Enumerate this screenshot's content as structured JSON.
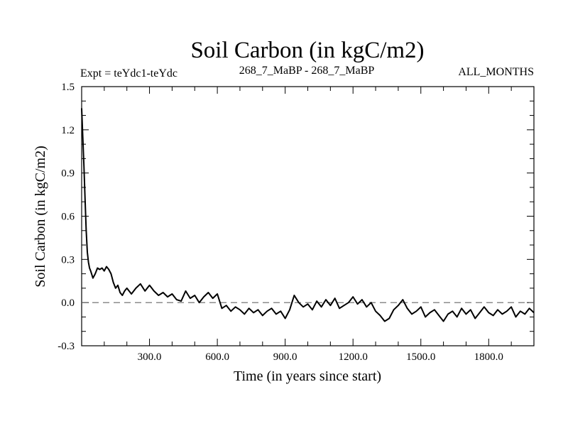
{
  "chart_data": {
    "type": "line",
    "title": "Soil Carbon (in kgC/m2)",
    "subtitle_left": "Expt = teYdc1-teYdc",
    "subtitle_center": "268_7_MaBP - 268_7_MaBP",
    "subtitle_right": "ALL_MONTHS",
    "xlabel": "Time (in years since start)",
    "ylabel": "Soil Carbon (in kgC/m2)",
    "xlim": [
      0,
      2000
    ],
    "ylim": [
      -0.3,
      1.5
    ],
    "xticks": [
      300,
      600,
      900,
      1200,
      1500,
      1800
    ],
    "xtick_labels": [
      "300.0",
      "600.0",
      "900.0",
      "1200.0",
      "1500.0",
      "1800.0"
    ],
    "yticks": [
      -0.3,
      0.0,
      0.3,
      0.6,
      0.9,
      1.2,
      1.5
    ],
    "ytick_labels": [
      "-0.3",
      "0.0",
      "0.3",
      "0.6",
      "0.9",
      "1.2",
      "1.5"
    ],
    "reference_line": {
      "y": 0.0,
      "style": "dashed"
    },
    "series": [
      {
        "name": "Soil Carbon",
        "x": [
          0,
          5,
          10,
          15,
          20,
          25,
          30,
          35,
          40,
          50,
          60,
          70,
          80,
          90,
          100,
          110,
          120,
          130,
          140,
          150,
          160,
          170,
          180,
          190,
          200,
          220,
          240,
          260,
          280,
          300,
          320,
          340,
          360,
          380,
          400,
          420,
          440,
          460,
          480,
          500,
          520,
          540,
          560,
          580,
          600,
          620,
          640,
          660,
          680,
          700,
          720,
          740,
          760,
          780,
          800,
          820,
          840,
          860,
          880,
          900,
          920,
          940,
          960,
          980,
          1000,
          1020,
          1040,
          1060,
          1080,
          1100,
          1120,
          1140,
          1160,
          1180,
          1200,
          1220,
          1240,
          1260,
          1280,
          1300,
          1320,
          1340,
          1360,
          1380,
          1400,
          1420,
          1440,
          1460,
          1480,
          1500,
          1520,
          1540,
          1560,
          1580,
          1600,
          1620,
          1640,
          1660,
          1680,
          1700,
          1720,
          1740,
          1760,
          1780,
          1800,
          1820,
          1840,
          1860,
          1880,
          1900,
          1920,
          1940,
          1960,
          1980,
          2000
        ],
        "values": [
          1.35,
          1.15,
          0.95,
          0.72,
          0.5,
          0.35,
          0.28,
          0.24,
          0.22,
          0.17,
          0.2,
          0.24,
          0.23,
          0.24,
          0.22,
          0.25,
          0.23,
          0.2,
          0.14,
          0.1,
          0.12,
          0.07,
          0.05,
          0.08,
          0.1,
          0.06,
          0.1,
          0.13,
          0.08,
          0.12,
          0.08,
          0.05,
          0.07,
          0.04,
          0.06,
          0.02,
          0.01,
          0.08,
          0.03,
          0.05,
          0.0,
          0.04,
          0.07,
          0.03,
          0.06,
          -0.04,
          -0.02,
          -0.06,
          -0.03,
          -0.05,
          -0.08,
          -0.04,
          -0.07,
          -0.05,
          -0.09,
          -0.06,
          -0.04,
          -0.08,
          -0.06,
          -0.11,
          -0.05,
          0.05,
          0.0,
          -0.03,
          -0.01,
          -0.05,
          0.01,
          -0.03,
          0.02,
          -0.02,
          0.03,
          -0.04,
          -0.02,
          0.0,
          0.04,
          -0.01,
          0.02,
          -0.03,
          0.0,
          -0.06,
          -0.09,
          -0.13,
          -0.11,
          -0.05,
          -0.02,
          0.02,
          -0.04,
          -0.08,
          -0.06,
          -0.03,
          -0.1,
          -0.07,
          -0.05,
          -0.09,
          -0.13,
          -0.08,
          -0.06,
          -0.1,
          -0.04,
          -0.08,
          -0.05,
          -0.11,
          -0.07,
          -0.03,
          -0.07,
          -0.09,
          -0.05,
          -0.08,
          -0.06,
          -0.03,
          -0.1,
          -0.06,
          -0.08,
          -0.04,
          -0.07
        ]
      }
    ]
  }
}
